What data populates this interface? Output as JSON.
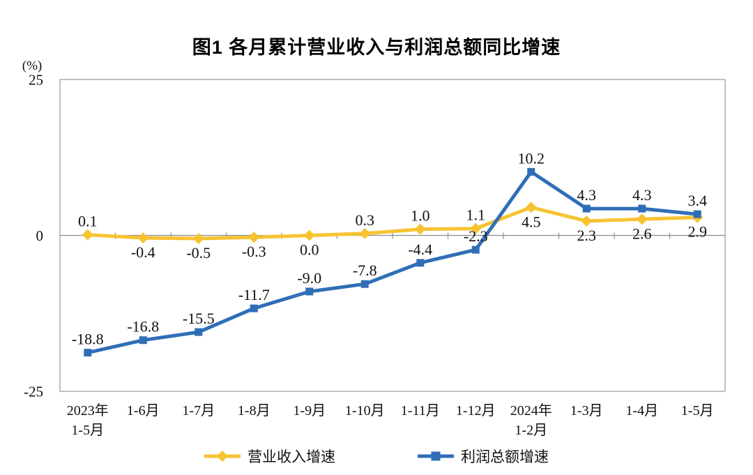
{
  "title": "图1  各月累计营业收入与利润总额同比增速",
  "chart_data": {
    "type": "line",
    "title": "图1  各月累计营业收入与利润总额同比增速",
    "unit": "(%)",
    "ylim": [
      -25,
      25
    ],
    "yticks": [
      25,
      0,
      -25
    ],
    "grid": false,
    "legend_position": "bottom",
    "categories": [
      "2023年\n1-5月",
      "1-6月",
      "1-7月",
      "1-8月",
      "1-9月",
      "1-10月",
      "1-11月",
      "1-12月",
      "2024年\n1-2月",
      "1-3月",
      "1-4月",
      "1-5月"
    ],
    "series": [
      {
        "key": "revenue-growth",
        "name": "营业收入增速",
        "color": "#F7C331",
        "marker": "diamond",
        "values": [
          0.1,
          -0.4,
          -0.5,
          -0.3,
          0.0,
          0.3,
          1.0,
          1.1,
          4.5,
          2.3,
          2.6,
          2.9
        ],
        "label_side": [
          "above",
          "below",
          "below",
          "below",
          "below",
          "above",
          "above",
          "above",
          "below",
          "below",
          "below",
          "below"
        ]
      },
      {
        "key": "profit-growth",
        "name": "利润总额增速",
        "color": "#2F6EB6",
        "marker": "square",
        "values": [
          -18.8,
          -16.8,
          -15.5,
          -11.7,
          -9.0,
          -7.8,
          -4.4,
          -2.3,
          10.2,
          4.3,
          4.3,
          3.4
        ],
        "label_side": [
          "above",
          "above",
          "above",
          "above",
          "above",
          "above",
          "above",
          "above",
          "above",
          "above",
          "above",
          "above"
        ]
      }
    ],
    "axis_color": "#9e9e9e",
    "zero_line_color": "#8c8c8c"
  }
}
